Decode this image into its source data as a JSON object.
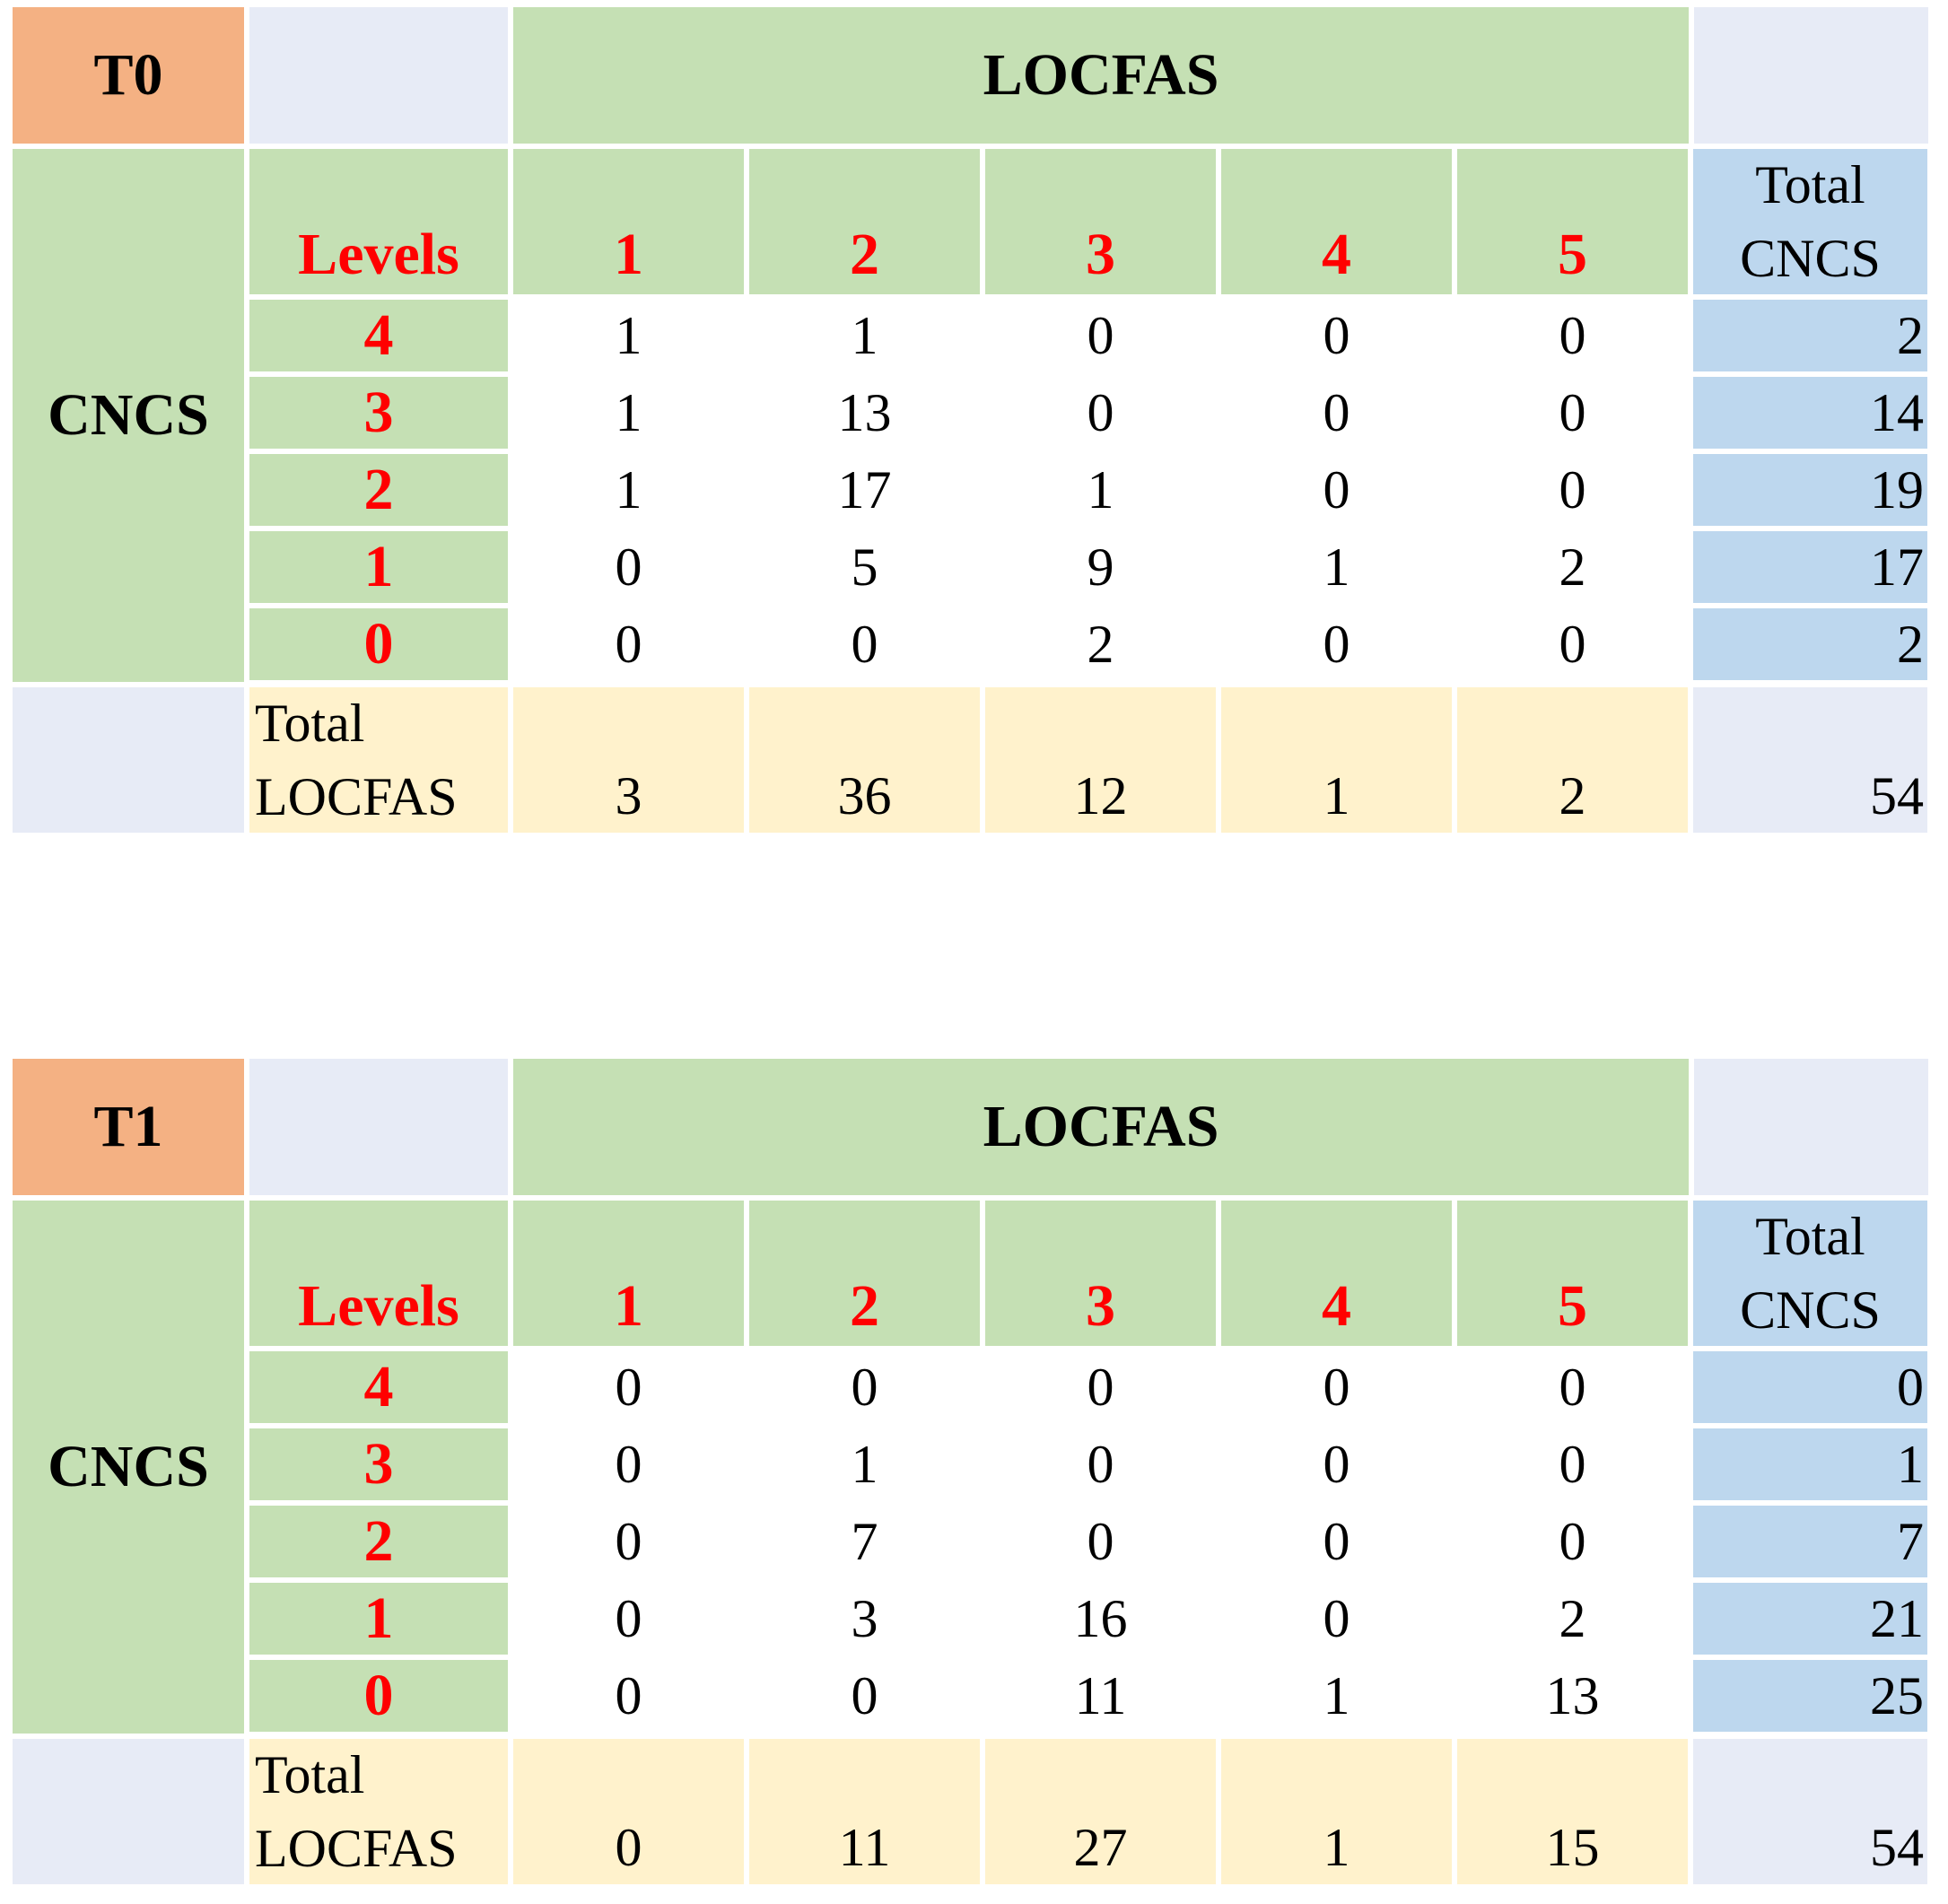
{
  "tables": [
    {
      "label": "T0",
      "header": "LOCFAS",
      "row_group": "CNCS",
      "levels_label": "Levels",
      "columns": [
        "1",
        "2",
        "3",
        "4",
        "5"
      ],
      "total_cncs_label": [
        "Total",
        "CNCS"
      ],
      "rows": [
        {
          "level": "4",
          "values": [
            "1",
            "1",
            "0",
            "0",
            "0"
          ],
          "total": "2"
        },
        {
          "level": "3",
          "values": [
            "1",
            "13",
            "0",
            "0",
            "0"
          ],
          "total": "14"
        },
        {
          "level": "2",
          "values": [
            "1",
            "17",
            "1",
            "0",
            "0"
          ],
          "total": "19"
        },
        {
          "level": "1",
          "values": [
            "0",
            "5",
            "9",
            "1",
            "2"
          ],
          "total": "17"
        },
        {
          "level": "0",
          "values": [
            "0",
            "0",
            "2",
            "0",
            "0"
          ],
          "total": "2"
        }
      ],
      "total_locfas_label": [
        "Total",
        "LOCFAS"
      ],
      "column_totals": [
        "3",
        "36",
        "12",
        "1",
        "2"
      ],
      "grand_total": "54"
    },
    {
      "label": "T1",
      "header": "LOCFAS",
      "row_group": "CNCS",
      "levels_label": "Levels",
      "columns": [
        "1",
        "2",
        "3",
        "4",
        "5"
      ],
      "total_cncs_label": [
        "Total",
        "CNCS"
      ],
      "rows": [
        {
          "level": "4",
          "values": [
            "0",
            "0",
            "0",
            "0",
            "0"
          ],
          "total": "0"
        },
        {
          "level": "3",
          "values": [
            "0",
            "1",
            "0",
            "0",
            "0"
          ],
          "total": "1"
        },
        {
          "level": "2",
          "values": [
            "0",
            "7",
            "0",
            "0",
            "0"
          ],
          "total": "7"
        },
        {
          "level": "1",
          "values": [
            "0",
            "3",
            "16",
            "0",
            "2"
          ],
          "total": "21"
        },
        {
          "level": "0",
          "values": [
            "0",
            "0",
            "11",
            "1",
            "13"
          ],
          "total": "25"
        }
      ],
      "total_locfas_label": [
        "Total",
        "LOCFAS"
      ],
      "column_totals": [
        "0",
        "11",
        "27",
        "1",
        "15"
      ],
      "grand_total": "54"
    }
  ],
  "colors": {
    "orange": "#f4b183",
    "green": "#c5e0b4",
    "blue": "#bdd7ee",
    "cream": "#fff2cc",
    "lavender": "#e7ebf6",
    "red_text": "#ff0000"
  }
}
